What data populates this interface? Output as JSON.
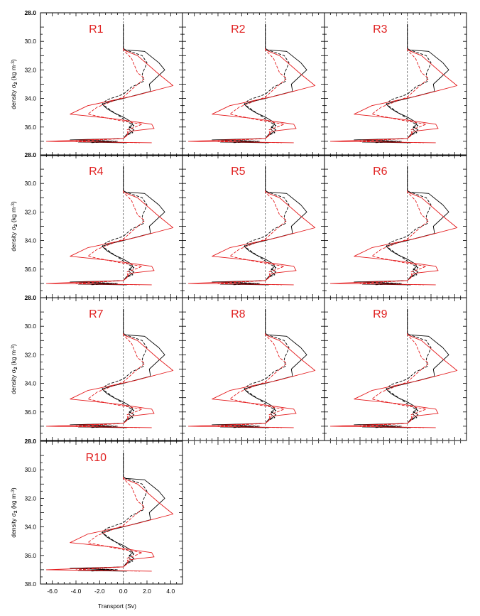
{
  "colors": {
    "black": "#000000",
    "red": "#e41a1c",
    "label": "#e02020",
    "zero_line": "#555555"
  },
  "axes": {
    "ylabel_main": "density ",
    "ylabel_sigma": "σ",
    "ylabel_sub": "2",
    "ylabel_units_a": " (kg m",
    "ylabel_units_sup": "-3",
    "ylabel_units_b": ")",
    "xlabel": "Transport (Sv)",
    "ytick_labels": [
      "30.0",
      "32.0",
      "34.0",
      "36.0"
    ],
    "ybound_labels": [
      "28.0",
      "38.0"
    ],
    "xtick_labels": [
      "-6.0",
      "-4.0",
      "-2.0",
      "0.0",
      "2.0",
      "4.0"
    ]
  },
  "chart_data": {
    "type": "line",
    "layout": "panel grid, 3 columns, 10 panels",
    "xlabel": "Transport (Sv)",
    "ylabel": "density σ2 (kg m-3)",
    "xlim": [
      -7.0,
      5.0
    ],
    "ylim": [
      38.0,
      28.0
    ],
    "y_inverted": true,
    "zero_reference_line": "dashed vertical at x = 0",
    "panels": [
      {
        "label": "R1"
      },
      {
        "label": "R2"
      },
      {
        "label": "R3"
      },
      {
        "label": "R4"
      },
      {
        "label": "R5"
      },
      {
        "label": "R6"
      },
      {
        "label": "R7"
      },
      {
        "label": "R8"
      },
      {
        "label": "R9"
      },
      {
        "label": "R10"
      }
    ],
    "series": [
      {
        "color": "black",
        "dash": "solid",
        "y": [
          28.8,
          30.5,
          30.6,
          30.7,
          31.5,
          32.0,
          33.0,
          33.5,
          34.0,
          34.2,
          34.4,
          34.7,
          35.0,
          35.3,
          35.6,
          35.8,
          36.0,
          36.2,
          36.4,
          36.5,
          36.6,
          36.8,
          36.9,
          37.0,
          37.05,
          37.1
        ],
        "x": [
          0.0,
          0.0,
          0.2,
          1.8,
          3.0,
          3.5,
          2.2,
          2.3,
          0.0,
          -1.0,
          -1.8,
          -1.4,
          -0.8,
          0.0,
          0.6,
          0.8,
          0.5,
          0.9,
          0.6,
          0.3,
          0.2,
          0.0,
          -4.5,
          -1.0,
          -3.8,
          0.3
        ]
      },
      {
        "color": "black",
        "dash": "dashed",
        "y": [
          28.8,
          30.5,
          30.6,
          31.0,
          31.5,
          32.3,
          32.8,
          33.2,
          33.7,
          34.1,
          34.4,
          34.8,
          35.2,
          35.6,
          35.9,
          36.1,
          36.4,
          36.6,
          36.8,
          36.9,
          37.0,
          37.1
        ],
        "x": [
          0.0,
          0.0,
          0.2,
          1.6,
          2.0,
          1.6,
          1.7,
          0.7,
          0.0,
          -1.4,
          -1.8,
          -1.1,
          -0.4,
          0.3,
          0.9,
          0.4,
          0.8,
          0.2,
          0.0,
          -3.4,
          -0.5,
          -2.8
        ]
      },
      {
        "color": "red",
        "dash": "solid",
        "y": [
          30.5,
          30.6,
          31.0,
          32.3,
          33.1,
          33.8,
          34.5,
          35.1,
          35.4,
          35.8,
          36.1,
          36.3,
          36.6,
          36.8,
          37.0,
          37.1
        ],
        "x": [
          0.0,
          0.0,
          1.2,
          3.0,
          4.2,
          1.0,
          -3.0,
          -4.5,
          -1.0,
          2.4,
          2.6,
          0.5,
          0.3,
          0.0,
          -6.5,
          2.4
        ]
      },
      {
        "color": "red",
        "dash": "dashed",
        "y": [
          30.5,
          30.6,
          31.2,
          32.2,
          32.6,
          33.3,
          33.9,
          34.6,
          35.1,
          35.5,
          35.8,
          36.0,
          36.2,
          36.5,
          36.8,
          37.0,
          37.1
        ],
        "x": [
          0.0,
          0.0,
          0.7,
          1.2,
          1.8,
          0.8,
          0.0,
          -2.2,
          -3.0,
          -0.6,
          1.6,
          1.0,
          0.3,
          0.4,
          0.0,
          -4.0,
          1.4
        ]
      }
    ]
  }
}
